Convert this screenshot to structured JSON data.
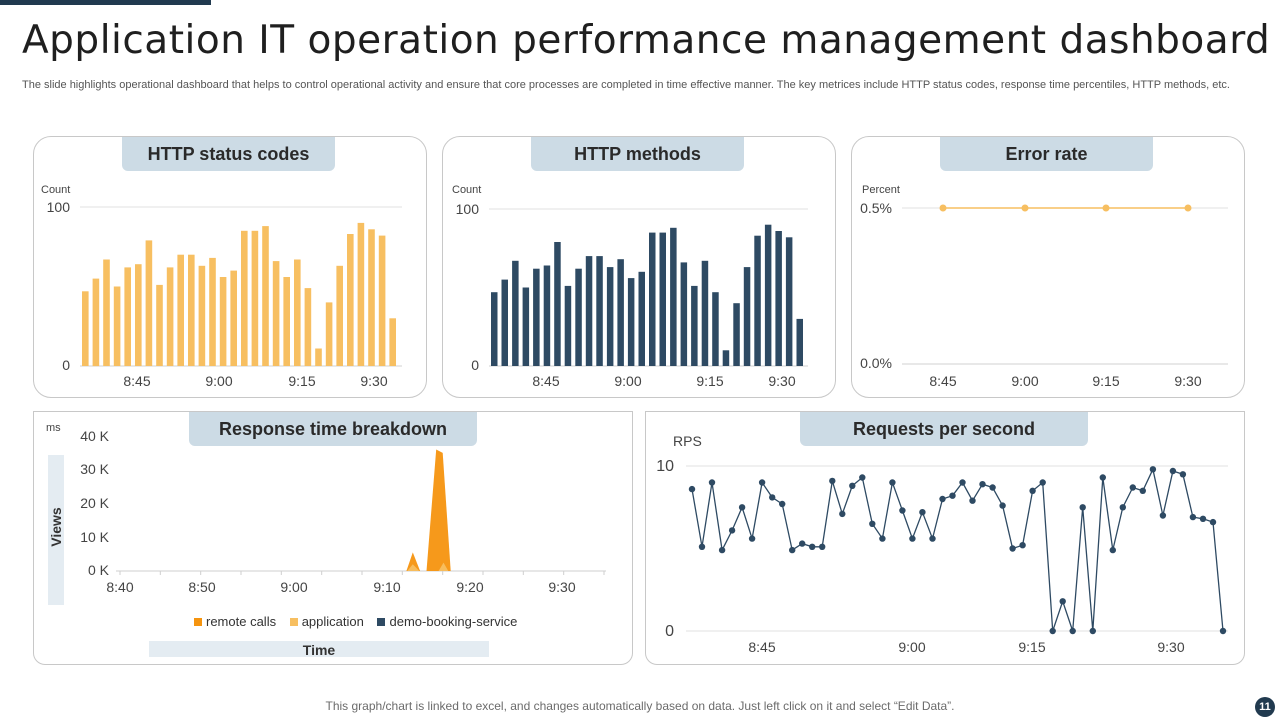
{
  "header": {
    "title": "Application IT operation performance management dashboard",
    "subtitle": "The slide highlights operational dashboard that helps to control operational activity and ensure that core processes are completed in time effective manner. The key metrices include HTTP status codes, response time percentiles, HTTP methods, etc."
  },
  "colors": {
    "accent": "#f7bf61",
    "navy": "#2e4a63",
    "orange": "#f5940f",
    "panel_tag": "#ccdbe5",
    "dark": "#213a4f"
  },
  "panels": {
    "status": {
      "title": "HTTP status codes"
    },
    "methods": {
      "title": "HTTP methods"
    },
    "error": {
      "title": "Error rate"
    },
    "response": {
      "title": "Response time breakdown",
      "ylabel": "Views",
      "xlabel": "Time"
    },
    "rps": {
      "title": "Requests per second"
    }
  },
  "legend": {
    "remote": "remote calls",
    "application": "application",
    "demo": "demo-booking-service"
  },
  "footer": {
    "note": "This graph/chart is linked to excel,  and changes automatically based on data. Just left click on it and select “Edit Data”.",
    "page": "11"
  },
  "chart_data": [
    {
      "type": "bar",
      "title": "HTTP status codes",
      "ylabel": "Count",
      "ylim": [
        0,
        100
      ],
      "yticks": [
        "0",
        "100"
      ],
      "xticks": [
        "8:45",
        "9:00",
        "9:15",
        "9:30"
      ],
      "values": [
        47,
        55,
        67,
        50,
        62,
        64,
        79,
        51,
        62,
        70,
        70,
        63,
        68,
        56,
        60,
        85,
        85,
        88,
        66,
        56,
        67,
        49,
        11,
        40,
        63,
        83,
        90,
        86,
        82,
        30
      ]
    },
    {
      "type": "bar",
      "title": "HTTP methods",
      "ylabel": "Count",
      "ylim": [
        0,
        100
      ],
      "yticks": [
        "0",
        "100"
      ],
      "xticks": [
        "8:45",
        "9:00",
        "9:15",
        "9:30"
      ],
      "values": [
        47,
        55,
        67,
        50,
        62,
        64,
        79,
        51,
        62,
        70,
        70,
        63,
        68,
        56,
        60,
        85,
        85,
        88,
        66,
        51,
        67,
        47,
        10,
        40,
        63,
        83,
        90,
        86,
        82,
        30
      ]
    },
    {
      "type": "line",
      "title": "Error rate",
      "ylabel": "Percent",
      "ylim": [
        0,
        0.5
      ],
      "yticks": [
        "0.0%",
        "0.5%"
      ],
      "xticks": [
        "8:45",
        "9:00",
        "9:15",
        "9:30"
      ],
      "values": [
        0.5,
        0.5,
        0.5,
        0.5
      ]
    },
    {
      "type": "area",
      "title": "Response time breakdown",
      "ylabel": "ms",
      "ylim": [
        0,
        40000
      ],
      "yticks": [
        "0 K",
        "10 K",
        "20 K",
        "30 K",
        "40 K"
      ],
      "xticks": [
        "8:40",
        "8:50",
        "9:00",
        "9:10",
        "9:20",
        "9:30"
      ],
      "xlim": [
        0,
        60
      ],
      "series": [
        {
          "name": "remote calls",
          "x": [
            35.5,
            36.3,
            37.2
          ],
          "values": [
            0,
            5500,
            0
          ]
        },
        {
          "name": "remote calls",
          "x": [
            38.0,
            39.2,
            40.0,
            41.0
          ],
          "values": [
            0,
            36000,
            35000,
            0
          ]
        },
        {
          "name": "application",
          "x": [
            35.6,
            36.3,
            37.1
          ],
          "values": [
            0,
            2000,
            0
          ]
        },
        {
          "name": "application",
          "x": [
            39.5,
            40.1,
            40.7
          ],
          "values": [
            0,
            2500,
            0
          ]
        }
      ]
    },
    {
      "type": "line",
      "title": "Requests per second",
      "ylabel": "RPS",
      "ylim": [
        0,
        10
      ],
      "yticks": [
        "0",
        "10"
      ],
      "xticks": [
        "8:45",
        "9:00",
        "9:15",
        "9:30"
      ],
      "values": [
        8.6,
        5.1,
        9.0,
        4.9,
        6.1,
        7.5,
        5.6,
        9.0,
        8.1,
        7.7,
        4.9,
        5.3,
        5.1,
        5.1,
        9.1,
        7.1,
        8.8,
        9.3,
        6.5,
        5.6,
        9.0,
        7.3,
        5.6,
        7.2,
        5.6,
        8.0,
        8.2,
        9.0,
        7.9,
        8.9,
        8.7,
        7.6,
        5.0,
        5.2,
        8.5,
        9.0,
        0.0,
        1.8,
        0.0,
        7.5,
        0.0,
        9.3,
        4.9,
        7.5,
        8.7,
        8.5,
        9.8,
        7.0,
        9.7,
        9.5,
        6.9,
        6.8,
        6.6,
        0.0
      ]
    }
  ]
}
